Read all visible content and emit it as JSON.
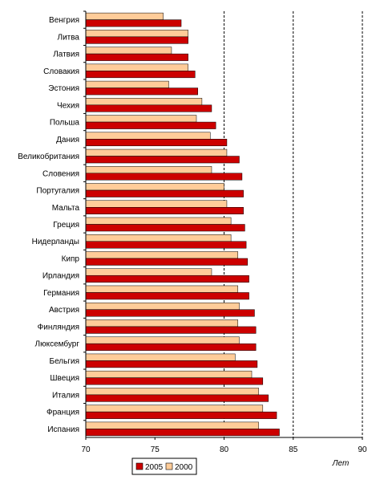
{
  "chart_data": {
    "type": "bar",
    "orientation": "horizontal",
    "title": "",
    "xlabel": "Лет",
    "ylabel": "",
    "xlim": [
      70,
      90
    ],
    "xticks": [
      "70",
      "75",
      "80",
      "85",
      "90"
    ],
    "grid": "dashed vertical lines at 80, 85 and 90",
    "legend_position": "bottom-left",
    "categories": [
      "Венгрия",
      "Литва",
      "Латвия",
      "Словакия",
      "Эстония",
      "Чехия",
      "Польша",
      "Дания",
      "Великобритания",
      "Словения",
      "Португалия",
      "Мальта",
      "Греция",
      "Нидерланды",
      "Кипр",
      "Ирландия",
      "Германия",
      "Австрия",
      "Финляндия",
      "Люксембург",
      "Бельгия",
      "Швеция",
      "Италия",
      "Франция",
      "Испания"
    ],
    "series": [
      {
        "name": "2000",
        "color": "#FFCC99",
        "values": [
          75.6,
          77.4,
          76.2,
          77.4,
          76.0,
          78.4,
          78.0,
          79.0,
          80.2,
          79.1,
          80.0,
          80.2,
          80.5,
          80.5,
          81.0,
          79.1,
          81.0,
          81.1,
          81.0,
          81.1,
          80.8,
          82.0,
          82.5,
          82.8,
          82.5
        ]
      },
      {
        "name": "2005",
        "color": "#CC0000",
        "values": [
          76.9,
          77.4,
          77.4,
          77.9,
          78.1,
          79.1,
          79.4,
          80.2,
          81.1,
          81.3,
          81.4,
          81.4,
          81.5,
          81.6,
          81.7,
          81.8,
          81.8,
          82.2,
          82.3,
          82.3,
          82.4,
          82.8,
          83.2,
          83.8,
          84.0
        ]
      }
    ]
  }
}
